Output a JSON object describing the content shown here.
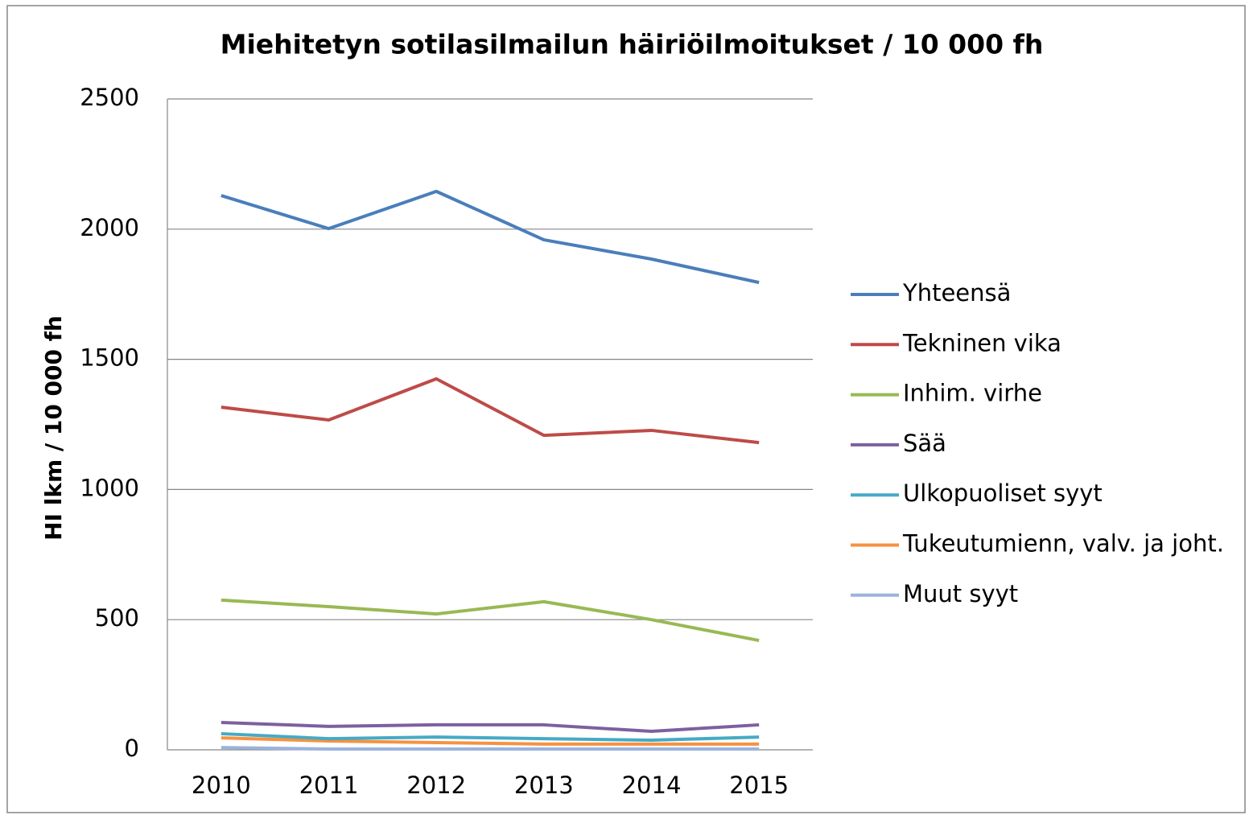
{
  "chart_data": {
    "type": "line",
    "title": "Miehitetyn sotilasilmailun häiriöilmoitukset / 10 000 fh",
    "y_label": "HI lkm / 10 000 fh",
    "categories": [
      "2010",
      "2011",
      "2012",
      "2013",
      "2014",
      "2015"
    ],
    "series": [
      {
        "name": "Yhteensä",
        "color": "#4a7ebb",
        "values": [
          2129,
          2002,
          2145,
          1959,
          1885,
          1795
        ]
      },
      {
        "name": "Tekninen vika",
        "color": "#be4b48",
        "values": [
          1316,
          1267,
          1425,
          1208,
          1227,
          1180
        ]
      },
      {
        "name": "Inhim. virhe",
        "color": "#98b954",
        "values": [
          575,
          550,
          522,
          569,
          500,
          420
        ]
      },
      {
        "name": "Sää",
        "color": "#7d60a0",
        "values": [
          105,
          90,
          96,
          96,
          71,
          96
        ]
      },
      {
        "name": "Ulkopuoliset syyt",
        "color": "#46aac5",
        "values": [
          62,
          43,
          49,
          43,
          37,
          49
        ]
      },
      {
        "name": "Tukeutumienn, valv. ja joht.",
        "color": "#f69240",
        "values": [
          46,
          34,
          28,
          22,
          22,
          22
        ]
      },
      {
        "name": "Muut syyt",
        "color": "#9bb3dd",
        "values": [
          9,
          3,
          3,
          3,
          3,
          3
        ]
      }
    ],
    "ylim": [
      0,
      2500
    ],
    "yticks": [
      0,
      500,
      1000,
      1500,
      2000,
      2500
    ],
    "grid": true,
    "legend": "right"
  }
}
